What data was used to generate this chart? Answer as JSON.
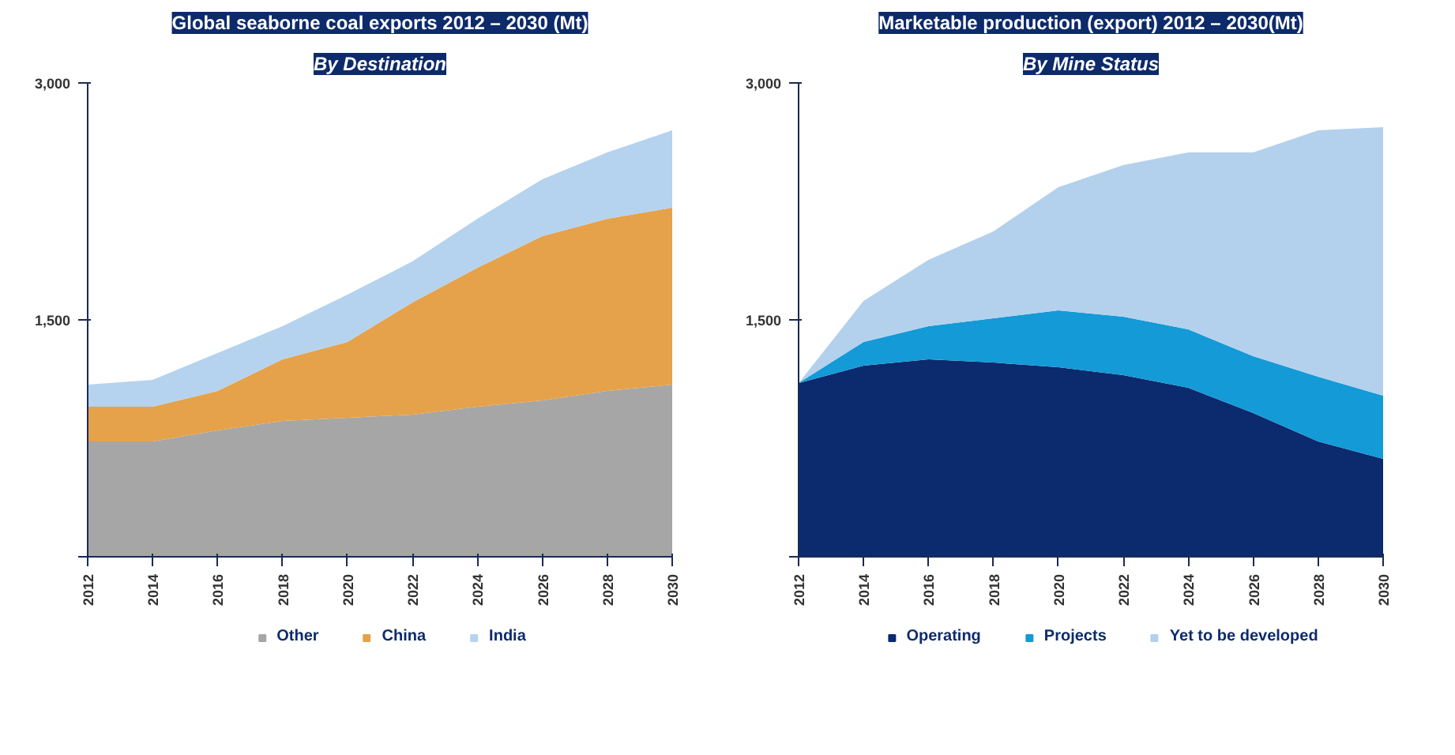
{
  "chart_data": [
    {
      "type": "area",
      "stacked": true,
      "title": "Global seaborne coal exports 2012 – 2030 (Mt)",
      "subtitle": "By Destination",
      "x": [
        2012,
        2014,
        2016,
        2018,
        2020,
        2022,
        2024,
        2026,
        2028,
        2030
      ],
      "series": [
        {
          "name": "Other",
          "color": "#a6a6a6",
          "values": [
            730,
            730,
            800,
            860,
            880,
            900,
            950,
            990,
            1050,
            1090
          ]
        },
        {
          "name": "China",
          "color": "#e5a24a",
          "values": [
            220,
            220,
            250,
            390,
            480,
            710,
            880,
            1040,
            1090,
            1120
          ]
        },
        {
          "name": "India",
          "color": "#b5d3ee",
          "values": [
            140,
            170,
            240,
            210,
            300,
            260,
            310,
            360,
            420,
            490
          ]
        }
      ],
      "xlim": [
        2012,
        2030
      ],
      "xticks": [
        2012,
        2014,
        2016,
        2018,
        2020,
        2022,
        2024,
        2026,
        2028,
        2030
      ],
      "ylim": [
        0,
        3000
      ],
      "yticks": [
        {
          "value": 0,
          "label": null
        },
        {
          "value": 1500,
          "label": "1,500"
        },
        {
          "value": 3000,
          "label": "3,000"
        }
      ],
      "grid": false,
      "legend": "bottom"
    },
    {
      "type": "area",
      "stacked": true,
      "title": "Marketable production (export) 2012 – 2030(Mt)",
      "subtitle": "By Mine Status",
      "x": [
        2012,
        2014,
        2016,
        2018,
        2020,
        2022,
        2024,
        2026,
        2028,
        2030
      ],
      "series": [
        {
          "name": "Operating",
          "color": "#0c2a6e",
          "values": [
            1100,
            1210,
            1250,
            1230,
            1200,
            1150,
            1070,
            910,
            730,
            620
          ]
        },
        {
          "name": "Projects",
          "color": "#149ad6",
          "values": [
            0,
            150,
            210,
            280,
            360,
            370,
            370,
            360,
            410,
            400
          ]
        },
        {
          "name": "Yet to be developed",
          "color": "#b3d1ec",
          "values": [
            0,
            260,
            420,
            550,
            780,
            960,
            1120,
            1290,
            1560,
            1700
          ]
        }
      ],
      "xlim": [
        2012,
        2030
      ],
      "xticks": [
        2012,
        2014,
        2016,
        2018,
        2020,
        2022,
        2024,
        2026,
        2028,
        2030
      ],
      "ylim": [
        0,
        3000
      ],
      "yticks": [
        {
          "value": 0,
          "label": null
        },
        {
          "value": 1500,
          "label": "1,500"
        },
        {
          "value": 3000,
          "label": "3,000"
        }
      ],
      "grid": false,
      "legend": "bottom"
    }
  ]
}
